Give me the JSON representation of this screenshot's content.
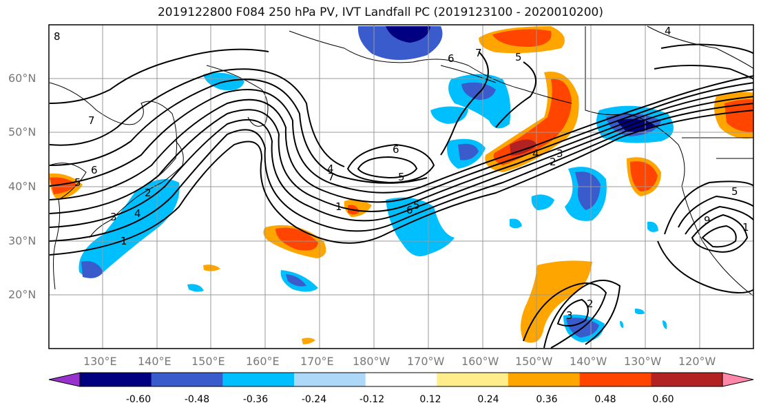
{
  "title": "2019122800 F084 250 hPa PV, IVT Landfall PC (2019123100 - 2020010200)",
  "map": {
    "lat_labels": [
      {
        "label": "60°N",
        "lat": 60
      },
      {
        "label": "50°N",
        "lat": 50
      },
      {
        "label": "40°N",
        "lat": 40
      },
      {
        "label": "30°N",
        "lat": 30
      },
      {
        "label": "20°N",
        "lat": 20
      }
    ],
    "lon_labels": [
      {
        "label": "130°E",
        "lon": 130
      },
      {
        "label": "140°E",
        "lon": 140
      },
      {
        "label": "150°E",
        "lon": 150
      },
      {
        "label": "160°E",
        "lon": 160
      },
      {
        "label": "170°E",
        "lon": 170
      },
      {
        "label": "180°W",
        "lon": 180
      },
      {
        "label": "170°W",
        "lon": 190
      },
      {
        "label": "160°W",
        "lon": 200
      },
      {
        "label": "150°W",
        "lon": 210
      },
      {
        "label": "140°W",
        "lon": 220
      },
      {
        "label": "130°W",
        "lon": 230
      },
      {
        "label": "120°W",
        "lon": 240
      }
    ],
    "extent": {
      "lon_min": 120,
      "lon_max": 250,
      "lat_min": 10,
      "lat_max": 70
    },
    "contour_labels": [
      "8",
      "7",
      "6",
      "5",
      "4",
      "3",
      "2",
      "1",
      "6",
      "5",
      "4",
      "7",
      "1",
      "6",
      "5",
      "3",
      "2",
      "4",
      "5",
      "6",
      "7",
      "4",
      "5",
      "9",
      "1",
      "2",
      "3"
    ],
    "colorbar": {
      "colors": [
        "#9932CC",
        "#000080",
        "#3A5BCB",
        "#00BFFF",
        "#ADD8F7",
        "#FFFFFF",
        "#FFEC8B",
        "#FFA500",
        "#FF4500",
        "#B22222",
        "#FF88AA"
      ],
      "ticks": [
        "-0.60",
        "-0.48",
        "-0.36",
        "-0.24",
        "-0.12",
        "0.12",
        "0.24",
        "0.36",
        "0.48",
        "0.60"
      ]
    }
  }
}
